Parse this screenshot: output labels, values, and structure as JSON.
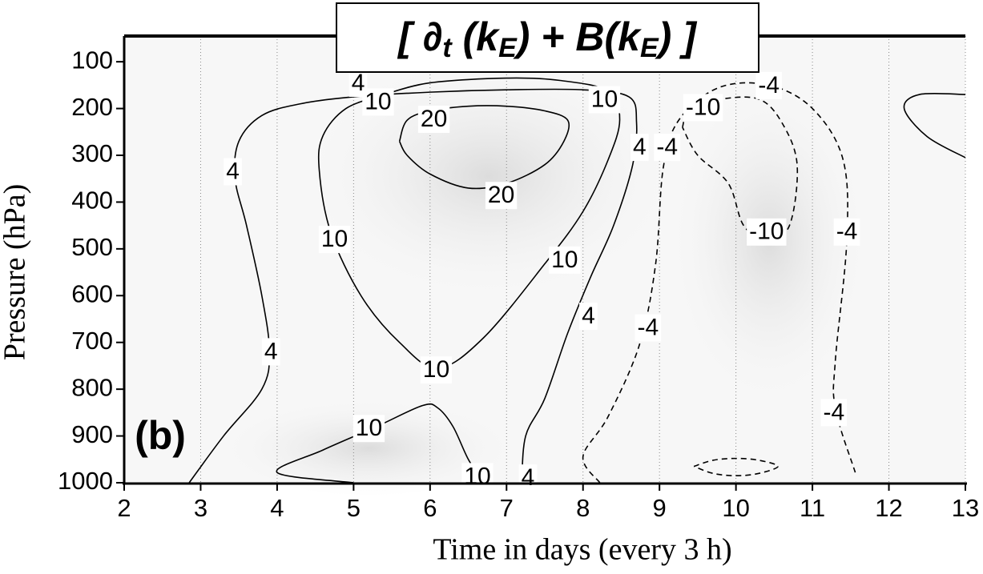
{
  "chart_data": {
    "type": "contour",
    "title": [
      "[ ∂",
      "t",
      " (k",
      "E",
      ") + B(k",
      "E",
      ")  ]"
    ],
    "panel_label": "(b)",
    "x_label": "Time in days (every 3 h)",
    "y_label": "Pressure (hPa)",
    "xlim": [
      2,
      13
    ],
    "xticks": [
      2,
      3,
      4,
      5,
      6,
      7,
      8,
      9,
      10,
      11,
      12,
      13
    ],
    "ylim": [
      1000,
      45
    ],
    "yticks": [
      100,
      200,
      300,
      400,
      500,
      600,
      700,
      800,
      900,
      1000
    ],
    "grid": true,
    "color": "#000000",
    "contours": [
      {
        "level": 4,
        "x": [
          2.85,
          3.3,
          3.8,
          3.9,
          3.8,
          3.6,
          3.45,
          3.5,
          3.8,
          4.3,
          5.0,
          6.0,
          7.0,
          8.0,
          8.6,
          8.7,
          8.65,
          8.4,
          8.1,
          7.8,
          7.5,
          7.25,
          7.2
        ],
        "y": [
          1000,
          900,
          800,
          720,
          600,
          450,
          350,
          270,
          215,
          190,
          175,
          165,
          160,
          160,
          175,
          230,
          320,
          450,
          560,
          680,
          820,
          900,
          1000
        ],
        "label_x": [
          3.42,
          3.92,
          5.06,
          8.74,
          8.07,
          7.28
        ],
        "label_y": [
          335,
          720,
          146,
          283,
          644,
          990
        ]
      },
      {
        "level": 10,
        "x": [
          5.4,
          4.9,
          4.6,
          4.55,
          4.7,
          5.1,
          5.6,
          6.1,
          6.7,
          7.5,
          8.0,
          8.33,
          8.48,
          8.33,
          7.7,
          7.0,
          6.0,
          5.4
        ],
        "y": [
          170,
          200,
          258,
          330,
          464,
          601,
          700,
          755,
          690,
          532,
          420,
          309,
          224,
          163,
          140,
          135,
          145,
          170
        ],
        "label_x": [
          5.32,
          6.08,
          7.76,
          8.28,
          4.75
        ],
        "label_y": [
          186,
          759,
          524,
          181,
          480
        ]
      },
      {
        "level": 20,
        "x": [
          5.6,
          5.7,
          6.0,
          6.5,
          7.0,
          7.5,
          7.8,
          7.75,
          7.5,
          7.0,
          6.5,
          6.0,
          5.7,
          5.6
        ],
        "y": [
          270,
          225,
          205,
          195,
          195,
          205,
          225,
          270,
          320,
          360,
          370,
          340,
          300,
          270
        ],
        "label_x": [
          6.05,
          6.93
        ],
        "label_y": [
          223,
          386
        ]
      },
      {
        "level": 10,
        "x": [
          5.0,
          4.0,
          4.6,
          5.3,
          5.9,
          6.1,
          6.3,
          6.5,
          6.7
        ],
        "y": [
          1000,
          978,
          930,
          880,
          835,
          840,
          880,
          950,
          1000
        ],
        "label_x": [
          5.2,
          6.62
        ],
        "label_y": [
          884,
          987
        ]
      },
      {
        "level": -4,
        "x": [
          8.22,
          8.0,
          8.33,
          8.74,
          8.95,
          9.05,
          9.26,
          9.78,
          10.43,
          11.0,
          11.4,
          11.45,
          11.3,
          11.3,
          11.56
        ],
        "y": [
          1000,
          944,
          858,
          704,
          532,
          326,
          223,
          155,
          150,
          200,
          309,
          481,
          738,
          841,
          978
        ],
        "label_x": [
          9.1,
          8.85,
          10.43,
          11.45,
          11.28
        ],
        "label_y": [
          283,
          669,
          151,
          464,
          850
        ]
      },
      {
        "level": -10,
        "x": [
          9.3,
          9.4,
          9.8,
          10.3,
          10.6,
          10.8,
          10.7,
          10.4,
          10.1,
          9.9,
          9.5,
          9.3
        ],
        "y": [
          240,
          200,
          180,
          180,
          230,
          320,
          450,
          480,
          450,
          360,
          300,
          240
        ],
        "label_x": [
          9.57,
          10.4
        ],
        "label_y": [
          198,
          464
        ]
      },
      {
        "level": -10,
        "x": [
          9.45,
          9.7,
          10.0,
          10.3,
          10.55,
          10.3,
          10.0,
          9.7,
          9.45
        ],
        "y": [
          965,
          952,
          948,
          952,
          965,
          980,
          985,
          980,
          965
        ],
        "label_x": [],
        "label_y": []
      },
      {
        "level": 4,
        "x": [
          13.0,
          12.5,
          12.2,
          12.4,
          13.0
        ],
        "y": [
          305,
          260,
          200,
          170,
          170
        ],
        "label_x": [],
        "label_y": []
      }
    ]
  }
}
